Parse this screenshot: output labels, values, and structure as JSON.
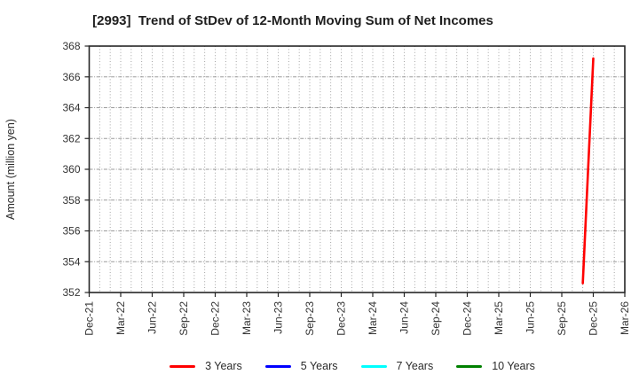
{
  "chart_data": {
    "type": "line",
    "title": "[2993]  Trend of StDev of 12-Month Moving Sum of Net Incomes",
    "xlabel": "",
    "ylabel": "Amount (million yen)",
    "ylim": [
      352,
      368
    ],
    "y_ticks": [
      352,
      354,
      356,
      358,
      360,
      362,
      364,
      366,
      368
    ],
    "x_axis": {
      "unit": "months-since-Dec-21",
      "total_months": 51,
      "ticks": [
        {
          "m": 0,
          "label": "Dec-21"
        },
        {
          "m": 3,
          "label": "Mar-22"
        },
        {
          "m": 6,
          "label": "Jun-22"
        },
        {
          "m": 9,
          "label": "Sep-22"
        },
        {
          "m": 12,
          "label": "Dec-22"
        },
        {
          "m": 15,
          "label": "Mar-23"
        },
        {
          "m": 18,
          "label": "Jun-23"
        },
        {
          "m": 21,
          "label": "Sep-23"
        },
        {
          "m": 24,
          "label": "Dec-23"
        },
        {
          "m": 27,
          "label": "Mar-24"
        },
        {
          "m": 30,
          "label": "Jun-24"
        },
        {
          "m": 33,
          "label": "Sep-24"
        },
        {
          "m": 36,
          "label": "Dec-24"
        },
        {
          "m": 39,
          "label": "Mar-25"
        },
        {
          "m": 42,
          "label": "Jun-25"
        },
        {
          "m": 45,
          "label": "Sep-25"
        },
        {
          "m": 48,
          "label": "Dec-25"
        },
        {
          "m": 51,
          "label": "Mar-26"
        }
      ]
    },
    "grid": {
      "vertical": "every-month",
      "horizontal": "every-y-tick",
      "style": "dotted",
      "color": "#9a9a9a"
    },
    "legend_position": "bottom-center",
    "series": [
      {
        "name": "3 Years",
        "color": "#ff0000",
        "points": [
          {
            "label": "Nov-25",
            "m": 47,
            "y": 352.6
          },
          {
            "label": "Dec-25",
            "m": 48,
            "y": 367.2
          }
        ]
      },
      {
        "name": "5 Years",
        "color": "#0000ff",
        "points": []
      },
      {
        "name": "7 Years",
        "color": "#00ffff",
        "points": []
      },
      {
        "name": "10 Years",
        "color": "#008000",
        "points": []
      }
    ]
  }
}
